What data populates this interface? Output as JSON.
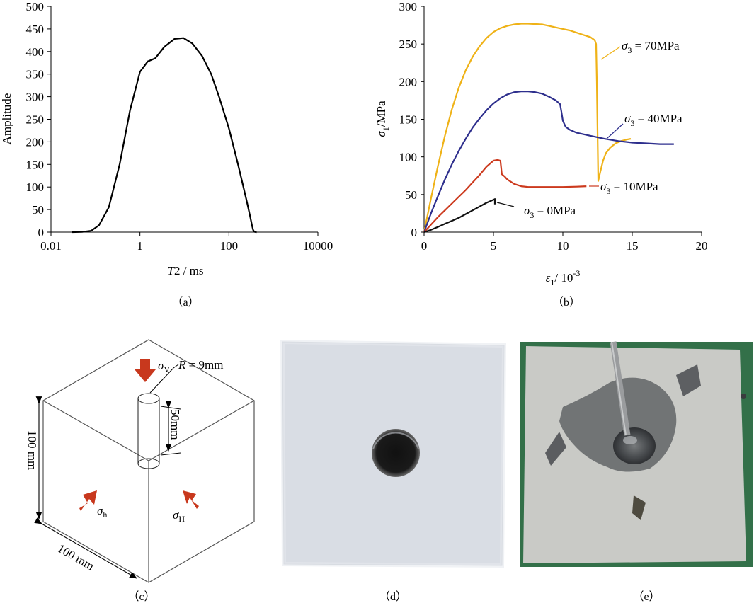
{
  "panel_labels": {
    "a": "（a）",
    "b": "（b）",
    "c": "（c）",
    "d": "（d）",
    "e": "（e）"
  },
  "chart_data": [
    {
      "type": "line",
      "xscale": "log",
      "xlim": [
        0.01,
        10000
      ],
      "ylim": [
        0,
        500
      ],
      "xticks": [
        0.01,
        1,
        100,
        10000
      ],
      "xtick_labels": [
        "0.01",
        "1",
        "100",
        "10000"
      ],
      "yticks": [
        0,
        50,
        100,
        150,
        200,
        250,
        300,
        350,
        400,
        450,
        500
      ],
      "xlabel_italic": "T",
      "xlabel_rest": "2 / ms",
      "ylabel": "Amplitude",
      "series": [
        {
          "color": "#000000",
          "x": [
            0.03,
            0.05,
            0.08,
            0.12,
            0.2,
            0.35,
            0.6,
            1.0,
            1.5,
            2.2,
            3.5,
            6,
            9.5,
            15,
            25,
            40,
            60,
            100,
            160,
            250,
            300,
            330,
            350,
            370,
            400,
            420
          ],
          "y": [
            0,
            0.5,
            3,
            15,
            55,
            150,
            270,
            355,
            378,
            385,
            410,
            428,
            430,
            418,
            390,
            350,
            300,
            230,
            150,
            70,
            35,
            15,
            5,
            1,
            0,
            0
          ]
        }
      ]
    },
    {
      "type": "line",
      "xlim": [
        0,
        20
      ],
      "ylim": [
        0,
        300
      ],
      "xticks": [
        0,
        5,
        10,
        15,
        20
      ],
      "yticks": [
        0,
        50,
        100,
        150,
        200,
        250,
        300
      ],
      "xlabel_sym": "ε",
      "xlabel_sub": "1",
      "xlabel_rest": "/ 10",
      "xlabel_sup": "-3",
      "ylabel_sym": "σ",
      "ylabel_sub": "1",
      "ylabel_rest": "/MPa",
      "series": [
        {
          "name": "σ3 = 70MPa",
          "label_sym": "σ",
          "label_sub": "3",
          "label_rest": " = 70MPa",
          "color": "#EFB217",
          "x": [
            0,
            0.5,
            1,
            1.5,
            2,
            2.5,
            3,
            3.5,
            4,
            4.5,
            5,
            5.5,
            6,
            6.5,
            7,
            7.5,
            8,
            8.5,
            9,
            9.5,
            10,
            10.5,
            11,
            11.5,
            12,
            12.15,
            12.3,
            12.4,
            12.45,
            12.55,
            12.7,
            12.9,
            13.1,
            13.4,
            13.8,
            14.2,
            14.6,
            14.9
          ],
          "y": [
            0,
            45,
            88,
            128,
            163,
            192,
            215,
            233,
            247,
            258,
            266,
            271,
            274,
            276,
            277,
            277,
            276.5,
            276,
            274,
            272,
            270,
            268,
            265,
            262,
            259,
            257,
            255,
            250,
            200,
            68,
            80,
            95,
            105,
            112,
            118,
            121,
            123,
            124
          ]
        },
        {
          "name": "σ3 = 40MPa",
          "label_sym": "σ",
          "label_sub": "3",
          "label_rest": " = 40MPa",
          "color": "#2E2F8D",
          "x": [
            0,
            0.5,
            1,
            1.5,
            2,
            2.5,
            3,
            3.5,
            4,
            4.5,
            5,
            5.5,
            6,
            6.5,
            7,
            7.5,
            8,
            8.5,
            9,
            9.5,
            9.8,
            9.9,
            10.0,
            10.2,
            10.5,
            11,
            12,
            13,
            14,
            15,
            16,
            17,
            18
          ],
          "y": [
            0,
            25,
            48,
            70,
            90,
            108,
            124,
            139,
            151,
            162,
            171,
            178,
            183,
            186,
            187,
            187,
            186,
            184,
            180,
            175,
            170,
            160,
            148,
            140,
            136,
            132,
            128,
            124,
            121,
            119,
            118,
            117,
            117
          ]
        },
        {
          "name": "σ3 = 10MPa",
          "label_sym": "σ",
          "label_sub": "3",
          "label_rest": " = 10MPa",
          "color": "#CC3A1E",
          "x": [
            0,
            0.5,
            1,
            1.5,
            2,
            2.5,
            3,
            3.5,
            4,
            4.5,
            5,
            5.3,
            5.5,
            5.6,
            5.8,
            6,
            6.5,
            7,
            7.5,
            8,
            9,
            10,
            11,
            11.7
          ],
          "y": [
            0,
            10,
            20,
            29,
            38,
            47,
            56,
            66,
            76,
            87,
            95,
            96,
            95,
            77,
            74,
            70,
            64,
            61,
            60,
            60,
            60,
            60,
            60.5,
            61
          ]
        },
        {
          "name": "σ3 = 0MPa",
          "label_sym": "σ",
          "label_sub": "3",
          "label_rest": " = 0MPa",
          "color": "#111111",
          "x": [
            0,
            0.5,
            1,
            1.5,
            2,
            2.5,
            3,
            3.5,
            4,
            4.5,
            5,
            5.1,
            5.1
          ],
          "y": [
            0,
            3,
            7,
            11,
            15,
            19,
            24,
            29,
            34,
            39,
            43,
            44,
            37
          ]
        }
      ]
    }
  ],
  "diagram_c": {
    "r_label_sym": "R",
    "r_label_rest": " = 9mm",
    "depth_label": "50mm",
    "height_label": "100 mm",
    "width_label": "100 mm",
    "sigma_v_sym": "σ",
    "sigma_v_sub": "V",
    "sigma_h_sym": "σ",
    "sigma_h_sub": "h",
    "sigma_H_sym": "σ",
    "sigma_H_sub": "H",
    "arrow_color": "#C8381D"
  }
}
